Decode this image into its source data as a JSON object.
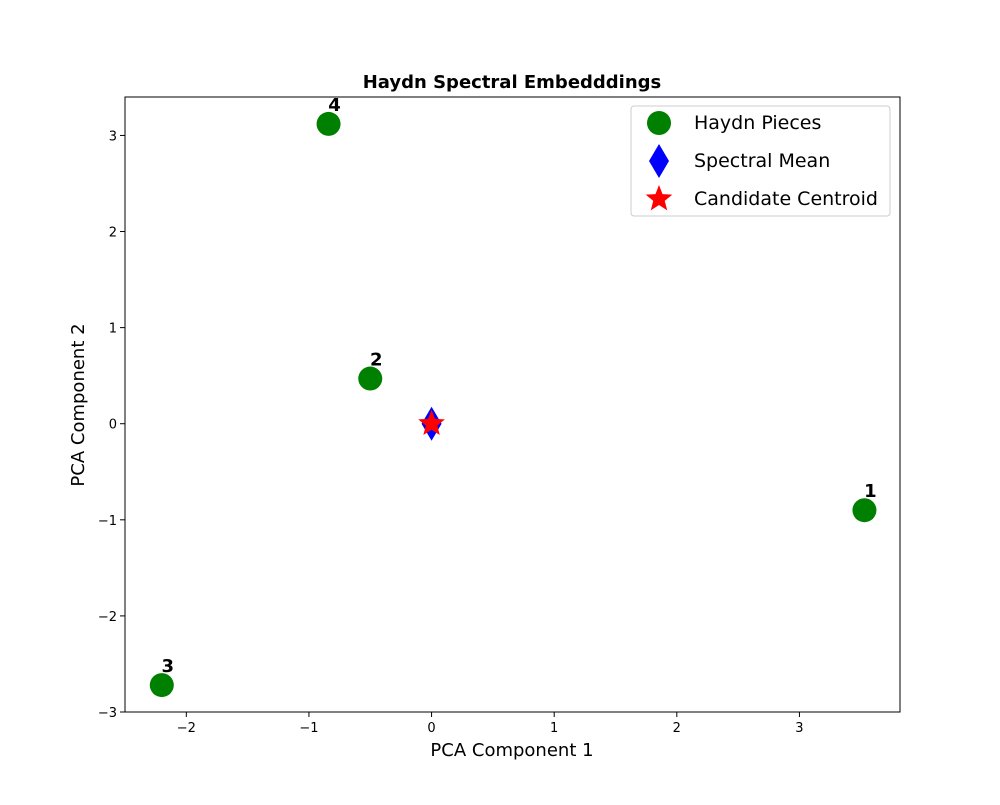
{
  "chart_data": {
    "type": "scatter",
    "title": "Haydn Spectral Embedddings",
    "xlabel": "PCA Component 1",
    "ylabel": "PCA Component 2",
    "xlim": [
      -2.5,
      3.82
    ],
    "ylim": [
      -3.0,
      3.4
    ],
    "xticks": [
      -2,
      -1,
      0,
      1,
      2,
      3
    ],
    "yticks": [
      -3,
      -2,
      -1,
      0,
      1,
      2,
      3
    ],
    "xtick_labels": [
      "−2",
      "−1",
      "0",
      "1",
      "2",
      "3"
    ],
    "ytick_labels": [
      "−3",
      "−2",
      "−1",
      "0",
      "1",
      "2",
      "3"
    ],
    "grid": false,
    "legend_position": "top-right",
    "series": [
      {
        "name": "Haydn Pieces",
        "marker": "circle",
        "color": "#008000",
        "points": [
          {
            "label": "1",
            "x": 3.53,
            "y": -0.9
          },
          {
            "label": "2",
            "x": -0.5,
            "y": 0.47
          },
          {
            "label": "3",
            "x": -2.2,
            "y": -2.72
          },
          {
            "label": "4",
            "x": -0.84,
            "y": 3.12
          }
        ]
      },
      {
        "name": "Spectral Mean",
        "marker": "diamond",
        "color": "#0000ff",
        "points": [
          {
            "x": 0.0,
            "y": 0.0
          }
        ]
      },
      {
        "name": "Candidate Centroid",
        "marker": "star",
        "color": "#ff0000",
        "points": [
          {
            "x": 0.0,
            "y": 0.0
          }
        ]
      }
    ]
  }
}
